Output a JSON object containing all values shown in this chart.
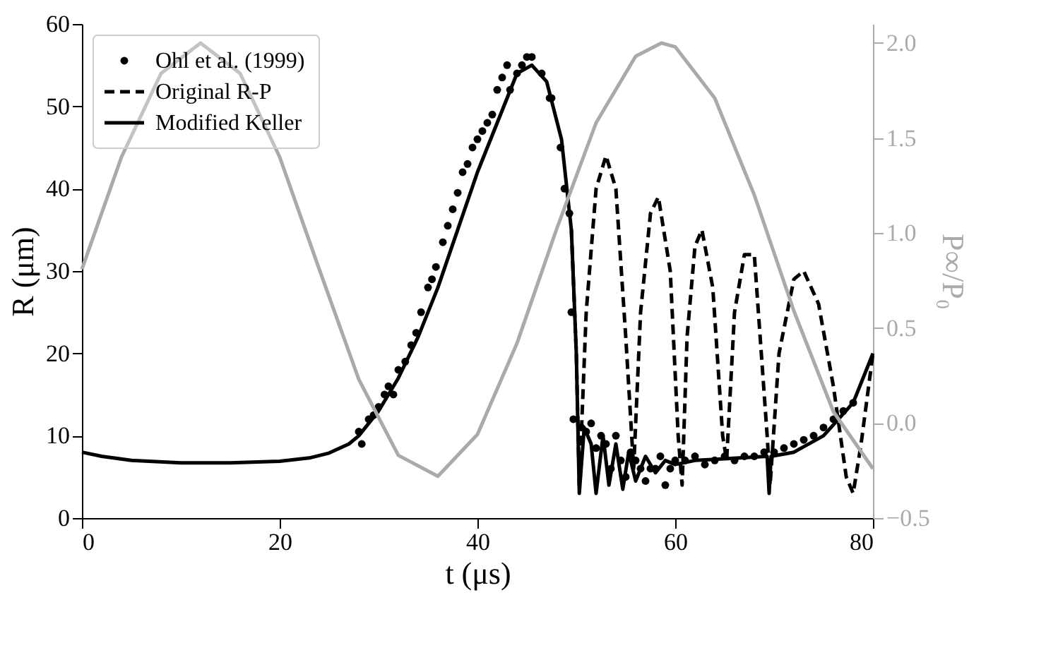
{
  "chart_data": {
    "type": "line",
    "xlabel": "t (μs)",
    "ylabel": "R (μm)",
    "y2label": "P∞/P₀",
    "xlim": [
      0,
      80
    ],
    "xticks": [
      0,
      20,
      40,
      60,
      80
    ],
    "ylim": [
      0,
      60
    ],
    "yticks": [
      0,
      10,
      20,
      30,
      40,
      50,
      60
    ],
    "y2lim": [
      -0.5,
      2.1
    ],
    "y2ticks": [
      {
        "value": -0.5,
        "label": "−0.5"
      },
      {
        "value": 0,
        "label": "0.0"
      },
      {
        "value": 0.5,
        "label": "0.5"
      },
      {
        "value": 1,
        "label": "1.0"
      },
      {
        "value": 1.5,
        "label": "1.5"
      },
      {
        "value": 2,
        "label": "2.0"
      }
    ],
    "grid": false,
    "legend": "top left",
    "series": [
      {
        "name": "Ohl et al. (1999)",
        "type": "scatter",
        "marker": "circle",
        "color": "#000000",
        "x": [
          28,
          28.3,
          29,
          29.5,
          30,
          30.6,
          31,
          31.5,
          32,
          32.7,
          33.3,
          33.8,
          34.3,
          35,
          35.4,
          35.8,
          36.5,
          37,
          37.5,
          38,
          38.5,
          39,
          39.5,
          40,
          40.5,
          41,
          41.5,
          42,
          42.5,
          43,
          43.3,
          44,
          44.5,
          45,
          45.5,
          46.5,
          47.3,
          47.5,
          48.4,
          48.8,
          49.3,
          49.5,
          49.7,
          50.5,
          51,
          51.5,
          52,
          52.5,
          53,
          53.5,
          54,
          54.5,
          55,
          55.5,
          56,
          56.5,
          57,
          57.5,
          58,
          58.5,
          59,
          59.5,
          60,
          61,
          62,
          63,
          64,
          65,
          66,
          67,
          68,
          69,
          70,
          71,
          72,
          73,
          74,
          75,
          76,
          77,
          78
        ],
        "values": [
          10.5,
          9,
          12,
          12.5,
          13.5,
          15,
          16,
          15,
          18,
          19,
          21,
          22.5,
          25,
          28,
          29,
          30.5,
          33.5,
          35.5,
          37.5,
          39.5,
          42,
          43,
          45,
          46,
          47,
          48,
          49,
          52,
          53.5,
          55,
          52,
          54,
          55,
          56,
          56,
          54,
          51,
          51,
          45,
          40,
          37,
          25,
          12,
          11,
          10.5,
          11.5,
          8.5,
          10,
          9,
          6,
          10,
          7,
          5,
          8,
          7,
          6,
          4.5,
          6,
          6,
          7.5,
          4,
          6,
          7,
          7,
          7.5,
          6.5,
          7,
          7.5,
          7,
          7.5,
          7.5,
          8,
          8,
          8.5,
          9,
          9.5,
          10,
          11,
          12,
          13,
          14
        ]
      },
      {
        "name": "Original R-P",
        "type": "line",
        "line_style": "dashed",
        "color": "#000000",
        "x": [
          49.5,
          50,
          50.3,
          51,
          52,
          53,
          54,
          55,
          55.8,
          56.5,
          57.5,
          58.3,
          59.5,
          60.3,
          60.7,
          61.2,
          62,
          62.7,
          63.8,
          64.8,
          65.2,
          66,
          67,
          68,
          69.3,
          69.6,
          70.5,
          72,
          73,
          74.5,
          76,
          77.3,
          78,
          78.8,
          80
        ],
        "values": [
          35,
          20,
          4,
          25,
          40,
          44,
          40,
          22,
          6,
          25,
          37,
          39,
          30,
          10,
          4,
          22,
          33,
          35,
          28,
          10,
          7,
          25,
          32,
          32,
          10,
          4,
          20,
          29,
          30,
          26,
          16,
          5,
          3,
          9,
          20
        ]
      },
      {
        "name": "Modified Keller",
        "type": "line",
        "line_style": "solid",
        "color": "#000000",
        "x": [
          0,
          2,
          5,
          10,
          15,
          20,
          23,
          25,
          27,
          28,
          30,
          32,
          34,
          36,
          38,
          40,
          42,
          44,
          45.5,
          47,
          48.5,
          49.5,
          50,
          50.3,
          50.8,
          51.5,
          52,
          52.7,
          53.3,
          54,
          54.7,
          55.3,
          56,
          57,
          58,
          59,
          60,
          62,
          65,
          69.3,
          69.5,
          69.7,
          72,
          75,
          78,
          80
        ],
        "values": [
          8,
          7.5,
          7,
          6.7,
          6.7,
          6.9,
          7.3,
          7.9,
          9,
          10,
          13,
          17,
          22,
          28,
          35,
          42,
          48,
          54,
          55,
          53,
          46,
          35,
          20,
          3,
          11,
          9,
          3,
          10,
          4,
          9,
          3.5,
          8,
          4.5,
          7.5,
          5.5,
          7,
          6.5,
          7,
          7.2,
          7.5,
          3,
          7.5,
          8,
          10,
          14,
          20
        ]
      },
      {
        "axis": "y2",
        "line_style": "solid",
        "color": "#aaaaaa",
        "x": [
          0,
          4,
          8,
          12,
          16,
          20,
          24,
          28,
          32,
          36,
          40,
          44,
          48,
          52,
          56,
          58.6,
          60,
          64,
          68,
          72,
          76,
          80
        ],
        "values": [
          0.81,
          1.4,
          1.84,
          2.0,
          1.84,
          1.4,
          0.81,
          0.23,
          -0.17,
          -0.28,
          -0.06,
          0.42,
          1.02,
          1.58,
          1.93,
          2.0,
          1.98,
          1.71,
          1.2,
          0.59,
          0.06,
          -0.24
        ]
      }
    ]
  }
}
